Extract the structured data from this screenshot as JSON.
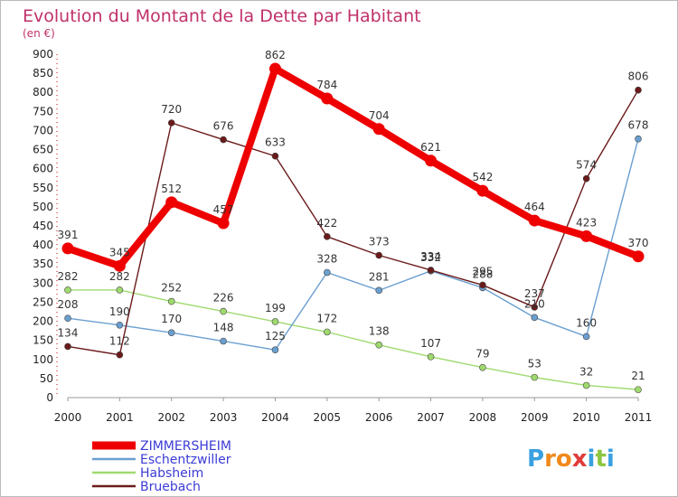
{
  "chart_data": {
    "type": "line",
    "title": "Evolution du Montant de la Dette par Habitant",
    "subtitle": "(en €)",
    "x": [
      "2000",
      "2001",
      "2002",
      "2003",
      "2004",
      "2005",
      "2006",
      "2007",
      "2008",
      "2009",
      "2010",
      "2011"
    ],
    "ylim": [
      0,
      900
    ],
    "yticks": [
      0,
      50,
      100,
      150,
      200,
      250,
      300,
      350,
      400,
      450,
      500,
      550,
      600,
      650,
      700,
      750,
      800,
      850,
      900
    ],
    "grid": false,
    "legend_position": "bottom-left",
    "series": [
      {
        "name": "ZIMMERSHEIM",
        "color": "#ee0000",
        "values": [
          391,
          345,
          512,
          457,
          862,
          784,
          704,
          621,
          542,
          464,
          423,
          370
        ]
      },
      {
        "name": "Eschentzwiller",
        "color": "#6a9fd0",
        "values": [
          208,
          190,
          170,
          148,
          125,
          328,
          281,
          332,
          288,
          210,
          160,
          678
        ]
      },
      {
        "name": "Habsheim",
        "color": "#9fda6e",
        "values": [
          282,
          282,
          252,
          226,
          199,
          172,
          138,
          107,
          79,
          53,
          32,
          21
        ]
      },
      {
        "name": "Bruebach",
        "color": "#6b1a1a",
        "values": [
          134,
          112,
          720,
          676,
          633,
          422,
          373,
          334,
          295,
          237,
          574,
          806
        ]
      }
    ]
  },
  "logo": {
    "text": "Proxiti",
    "letters": [
      "P",
      "r",
      "o",
      "x",
      "i",
      "t",
      "i"
    ],
    "colors": [
      "#3aa0e0",
      "#f08a1c",
      "#f08a1c",
      "#e03a3a",
      "#3aa0e0",
      "#8cc63f",
      "#3aa0e0"
    ]
  }
}
